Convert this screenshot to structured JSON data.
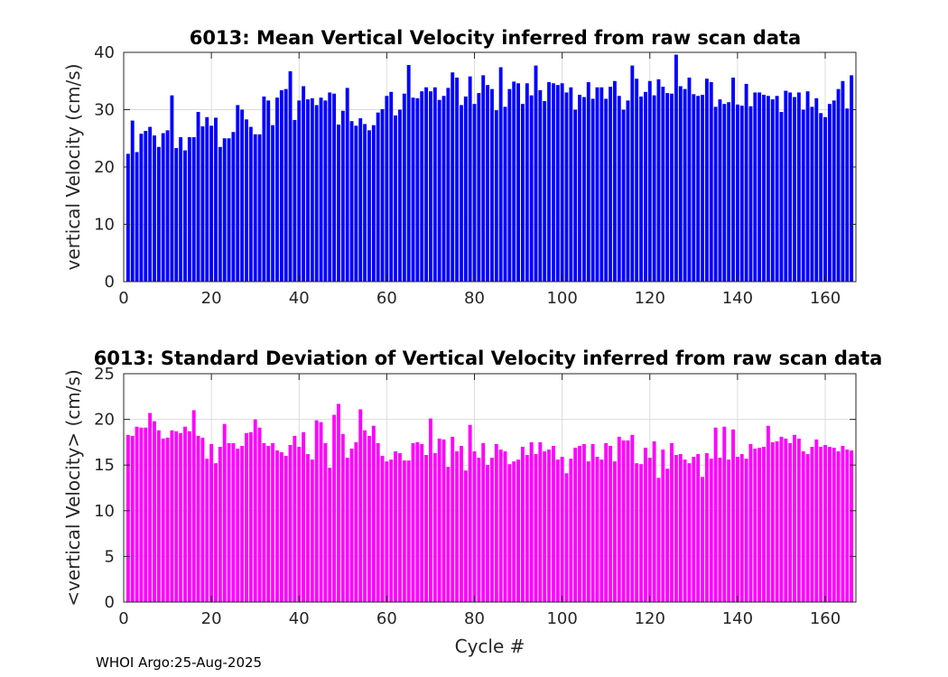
{
  "chart_data": [
    {
      "type": "bar",
      "title": "6013: Mean Vertical Velocity inferred from raw scan data",
      "xlabel": "",
      "ylabel": "vertical Velocity (cm/s)",
      "xlim": [
        0,
        167
      ],
      "ylim": [
        0,
        40
      ],
      "xticks": [
        "0",
        "20",
        "40",
        "60",
        "80",
        "100",
        "120",
        "140",
        "160"
      ],
      "yticks": [
        "0",
        "10",
        "20",
        "30",
        "40"
      ],
      "grid": true,
      "bar_color": "#0000ff",
      "x_start": 1,
      "values": [
        22.3,
        28.1,
        22.6,
        25.8,
        26.3,
        27.0,
        25.5,
        23.5,
        25.9,
        26.4,
        32.5,
        23.3,
        25.2,
        22.9,
        25.2,
        25.2,
        29.6,
        27.1,
        28.7,
        27.2,
        28.6,
        23.5,
        25.0,
        25.0,
        26.1,
        30.8,
        30.0,
        28.3,
        27.0,
        25.7,
        25.7,
        32.3,
        31.6,
        27.3,
        32.1,
        33.4,
        33.6,
        36.7,
        28.2,
        31.6,
        34.1,
        31.8,
        32.0,
        30.8,
        32.1,
        31.6,
        33.0,
        32.8,
        27.4,
        29.8,
        33.8,
        28.0,
        27.2,
        28.5,
        27.5,
        26.4,
        27.3,
        29.5,
        30.1,
        32.4,
        33.1,
        29.0,
        30.0,
        32.8,
        37.8,
        32.1,
        32.0,
        33.2,
        33.9,
        33.2,
        33.9,
        31.7,
        32.4,
        33.8,
        36.5,
        35.6,
        30.8,
        32.3,
        35.8,
        31.0,
        32.9,
        36.0,
        34.3,
        33.6,
        29.9,
        37.4,
        30.5,
        33.6,
        34.9,
        34.6,
        31.0,
        34.6,
        32.5,
        37.7,
        33.4,
        31.5,
        34.8,
        34.6,
        34.3,
        34.6,
        33.0,
        33.9,
        30.0,
        32.6,
        32.2,
        34.8,
        31.9,
        33.9,
        33.9,
        31.9,
        34.0,
        35.0,
        32.4,
        30.0,
        31.6,
        37.7,
        35.4,
        32.3,
        33.1,
        35.0,
        32.5,
        35.3,
        34.0,
        32.9,
        32.8,
        39.6,
        34.1,
        33.6,
        35.6,
        32.7,
        32.4,
        32.6,
        35.4,
        34.8,
        30.5,
        31.8,
        31.0,
        31.3,
        35.6,
        30.9,
        30.7,
        34.5,
        30.6,
        33.0,
        33.0,
        32.6,
        32.4,
        31.8,
        32.4,
        29.6,
        33.3,
        33.0,
        32.2,
        33.0,
        30.0,
        33.2,
        30.5,
        32.0,
        29.4,
        28.7,
        31.0,
        31.6,
        33.6,
        35.0,
        30.2,
        36.0
      ]
    },
    {
      "type": "bar",
      "title": "6013: Standard Deviation of Vertical Velocity inferred from raw scan data",
      "xlabel": "Cycle #",
      "ylabel": "<vertical Velocity> (cm/s)",
      "xlim": [
        0,
        167
      ],
      "ylim": [
        0,
        25
      ],
      "xticks": [
        "0",
        "20",
        "40",
        "60",
        "80",
        "100",
        "120",
        "140",
        "160"
      ],
      "yticks": [
        "0",
        "5",
        "10",
        "15",
        "20",
        "25"
      ],
      "grid": true,
      "bar_color": "#ff00ff",
      "x_start": 1,
      "values": [
        18.3,
        18.2,
        19.2,
        19.1,
        19.1,
        20.7,
        19.8,
        18.8,
        17.9,
        18.0,
        18.8,
        18.7,
        18.5,
        19.2,
        18.7,
        21.0,
        18.2,
        18.0,
        15.7,
        17.3,
        15.2,
        17.0,
        19.5,
        17.4,
        17.4,
        16.8,
        17.1,
        18.5,
        18.6,
        20.0,
        19.1,
        17.4,
        17.1,
        17.4,
        16.6,
        16.4,
        16.0,
        17.2,
        18.2,
        17.0,
        18.6,
        16.2,
        15.6,
        19.9,
        19.7,
        17.4,
        14.7,
        20.5,
        21.7,
        18.4,
        15.8,
        16.8,
        17.5,
        21.1,
        18.8,
        18.2,
        19.3,
        17.4,
        16.0,
        15.4,
        15.6,
        16.5,
        16.3,
        15.5,
        15.5,
        17.4,
        17.5,
        17.3,
        16.1,
        20.1,
        16.3,
        17.9,
        17.8,
        14.8,
        18.1,
        16.5,
        17.1,
        14.4,
        19.4,
        16.5,
        15.8,
        17.4,
        15.0,
        15.8,
        17.3,
        16.7,
        16.5,
        15.1,
        15.4,
        15.6,
        17.0,
        16.1,
        17.5,
        16.2,
        17.5,
        16.5,
        16.7,
        17.1,
        15.6,
        15.9,
        14.1,
        15.7,
        16.9,
        17.1,
        17.3,
        15.4,
        17.3,
        15.9,
        15.6,
        17.4,
        17.1,
        15.4,
        18.1,
        17.7,
        17.7,
        18.3,
        15.2,
        15.1,
        16.9,
        15.8,
        17.6,
        13.6,
        16.7,
        14.6,
        17.4,
        16.1,
        16.2,
        15.6,
        15.2,
        15.9,
        16.2,
        13.7,
        16.3,
        15.7,
        19.1,
        15.8,
        19.2,
        15.6,
        18.9,
        15.9,
        16.2,
        15.7,
        17.3,
        16.8,
        16.9,
        17.0,
        19.3,
        17.5,
        17.6,
        18.1,
        17.9,
        17.4,
        18.3,
        17.9,
        16.5,
        16.2,
        17.0,
        17.8,
        17.0,
        17.2,
        17.0,
        16.9,
        16.5,
        17.1,
        16.7,
        16.6
      ]
    }
  ],
  "footer": "WHOI Argo:25-Aug-2025"
}
